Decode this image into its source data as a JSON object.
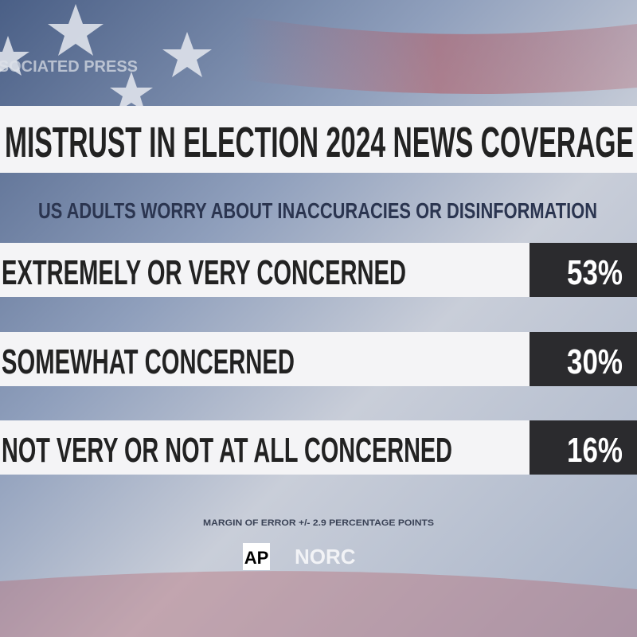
{
  "watermark": "ASSOCIATED PRESS",
  "header": {
    "title": "MISTRUST IN ELECTION 2024 NEWS COVERAGE",
    "subtitle": "US ADULTS WORRY ABOUT INACCURACIES OR DISINFORMATION"
  },
  "rows": [
    {
      "label": "EXTREMELY OR VERY CONCERNED",
      "value": "53%"
    },
    {
      "label": "SOMEWHAT CONCERNED",
      "value": "30%"
    },
    {
      "label": "NOT VERY OR NOT AT ALL CONCERNED",
      "value": "16%"
    }
  ],
  "footer": {
    "note": "MARGIN OF ERROR +/- 2.9 PERCENTAGE POINTS",
    "logo_ap": "AP",
    "logo_norc": "NORC"
  }
}
